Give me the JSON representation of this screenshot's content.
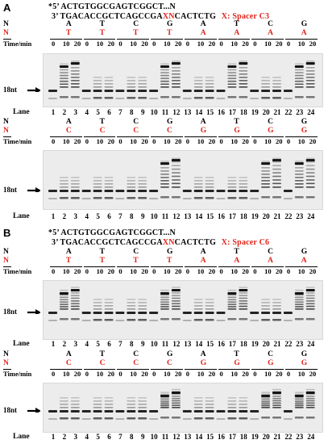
{
  "panelA": {
    "letter": "A",
    "seq_top": "*5’  ACTGTGGCGAGTCGGCT...N",
    "seq_bottom_pre": "3’  TGACACCGCTCAGCCGA",
    "seq_bottom_xn": "XN",
    "seq_bottom_post": "CACTCTG",
    "spacer": "X: Spacer C3"
  },
  "panelB": {
    "letter": "B",
    "seq_top": "*5’  ACTGTGGCGAGTCGGCT...N",
    "seq_bottom_pre": "3’  TGACACCGCTCAGCCGA",
    "seq_bottom_xn": "XN",
    "seq_bottom_post": "CACTCTG",
    "spacer": "X: Spacer C6"
  },
  "labels": {
    "time": "Time/min",
    "lane": "Lane",
    "marker": "18nt",
    "N": "N"
  },
  "gel_header": {
    "top_bases": [
      "A",
      "T",
      "C",
      "G",
      "A",
      "T",
      "C",
      "G"
    ],
    "rows": [
      [
        "T",
        "T",
        "T",
        "T",
        "A",
        "A",
        "A",
        "A"
      ],
      [
        "C",
        "C",
        "C",
        "C",
        "G",
        "G",
        "G",
        "G"
      ]
    ],
    "times": [
      "0",
      "10",
      "20"
    ]
  },
  "lanes": [
    "1",
    "2",
    "3",
    "4",
    "5",
    "6",
    "7",
    "8",
    "9",
    "10",
    "11",
    "12",
    "13",
    "14",
    "15",
    "16",
    "17",
    "18",
    "19",
    "20",
    "21",
    "22",
    "23",
    "24"
  ],
  "colors": {
    "red": "#e0241b",
    "band": "#000000",
    "gel": "#ececec"
  }
}
